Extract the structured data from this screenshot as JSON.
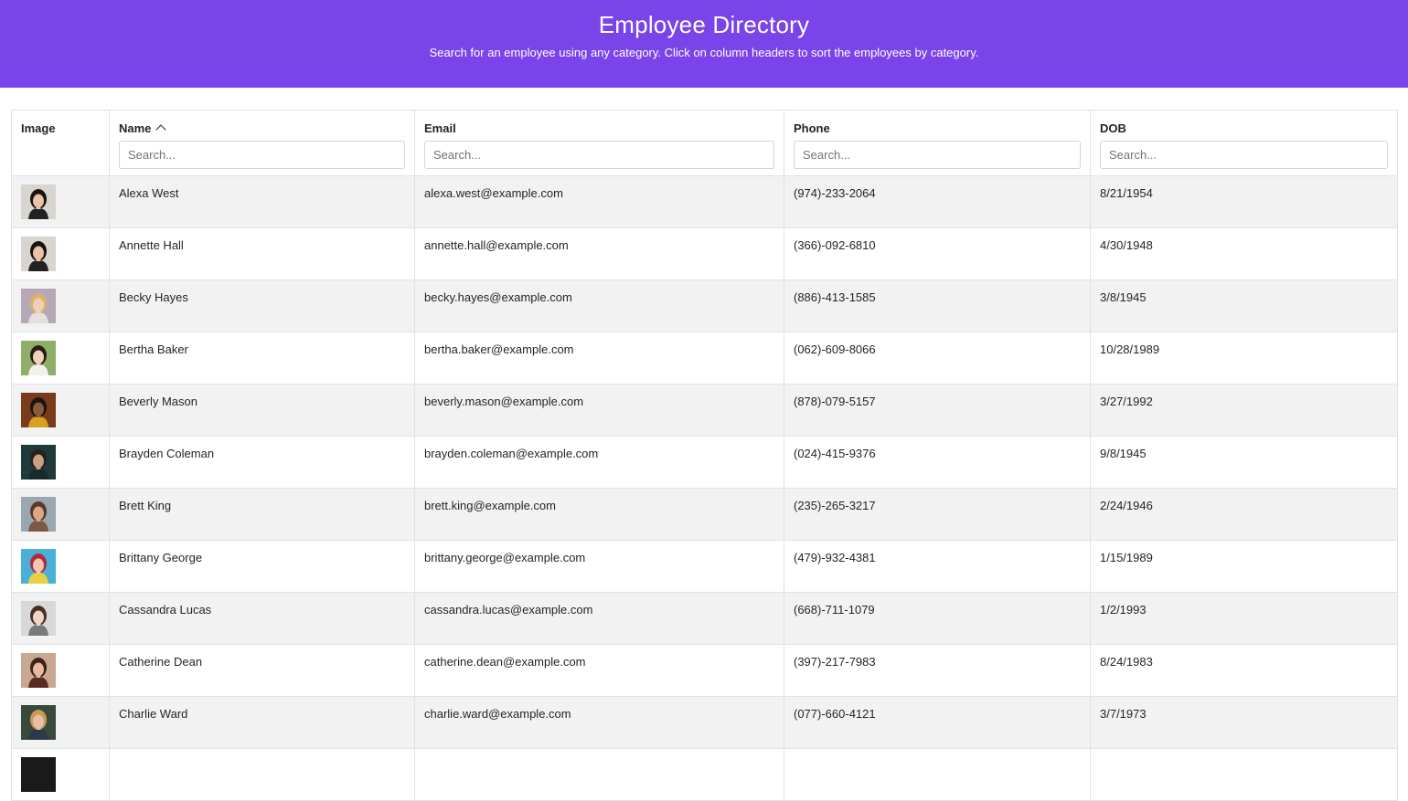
{
  "header": {
    "title": "Employee Directory",
    "subtitle": "Search for an employee using any category. Click on column headers to sort the employees by category."
  },
  "columns": [
    {
      "key": "image",
      "label": "Image"
    },
    {
      "key": "name",
      "label": "Name",
      "sort": "ascending",
      "placeholder": "Search..."
    },
    {
      "key": "email",
      "label": "Email",
      "placeholder": "Search..."
    },
    {
      "key": "phone",
      "label": "Phone",
      "placeholder": "Search..."
    },
    {
      "key": "dob",
      "label": "DOB",
      "placeholder": "Search..."
    }
  ],
  "employees": [
    {
      "name": "Alexa West",
      "email": "alexa.west@example.com",
      "phone": "(974)-233-2064",
      "dob": "8/21/1954",
      "avatar": {
        "bg": "#d8d4d0",
        "hair": "#1a1410",
        "skin": "#e8c3a8",
        "shirt": "#222222"
      }
    },
    {
      "name": "Annette Hall",
      "email": "annette.hall@example.com",
      "phone": "(366)-092-6810",
      "dob": "4/30/1948",
      "avatar": {
        "bg": "#d8d4d0",
        "hair": "#1a1410",
        "skin": "#e8c3a8",
        "shirt": "#222222"
      }
    },
    {
      "name": "Becky Hayes",
      "email": "becky.hayes@example.com",
      "phone": "(886)-413-1585",
      "dob": "3/8/1945",
      "avatar": {
        "bg": "#b7a8b8",
        "hair": "#d9b36a",
        "skin": "#f0cfb4",
        "shirt": "#e6e0da"
      }
    },
    {
      "name": "Bertha Baker",
      "email": "bertha.baker@example.com",
      "phone": "(062)-609-8066",
      "dob": "10/28/1989",
      "avatar": {
        "bg": "#8fae6a",
        "hair": "#2a1c14",
        "skin": "#f2d2bc",
        "shirt": "#f4f0ec"
      }
    },
    {
      "name": "Beverly Mason",
      "email": "beverly.mason@example.com",
      "phone": "(878)-079-5157",
      "dob": "3/27/1992",
      "avatar": {
        "bg": "#7a3b1c",
        "hair": "#1b1410",
        "skin": "#8a5a3c",
        "shirt": "#d9a020"
      }
    },
    {
      "name": "Brayden Coleman",
      "email": "brayden.coleman@example.com",
      "phone": "(024)-415-9376",
      "dob": "9/8/1945",
      "avatar": {
        "bg": "#1f3a3a",
        "hair": "#2a2018",
        "skin": "#c8a088",
        "shirt": "#1a2a2a"
      }
    },
    {
      "name": "Brett King",
      "email": "brett.king@example.com",
      "phone": "(235)-265-3217",
      "dob": "2/24/1946",
      "avatar": {
        "bg": "#9aa6b0",
        "hair": "#5a3a24",
        "skin": "#d8a888",
        "shirt": "#7a5a44"
      }
    },
    {
      "name": "Brittany George",
      "email": "brittany.george@example.com",
      "phone": "(479)-932-4381",
      "dob": "1/15/1989",
      "avatar": {
        "bg": "#4ab0d8",
        "hair": "#b02a3a",
        "skin": "#f0c8b0",
        "shirt": "#e8d040"
      }
    },
    {
      "name": "Cassandra Lucas",
      "email": "cassandra.lucas@example.com",
      "phone": "(668)-711-1079",
      "dob": "1/2/1993",
      "avatar": {
        "bg": "#d8d8d8",
        "hair": "#4a3024",
        "skin": "#f0d4c4",
        "shirt": "#7a7a7a"
      }
    },
    {
      "name": "Catherine Dean",
      "email": "catherine.dean@example.com",
      "phone": "(397)-217-7983",
      "dob": "8/24/1983",
      "avatar": {
        "bg": "#c8a890",
        "hair": "#3a2418",
        "skin": "#e8b8a0",
        "shirt": "#5a2a24"
      }
    },
    {
      "name": "Charlie Ward",
      "email": "charlie.ward@example.com",
      "phone": "(077)-660-4121",
      "dob": "3/7/1973",
      "avatar": {
        "bg": "#3a4a3a",
        "hair": "#c89a5a",
        "skin": "#e8c0a0",
        "shirt": "#2a3a4a"
      }
    },
    {
      "name": "",
      "email": "",
      "phone": "",
      "dob": "",
      "avatar": {
        "bg": "#1a1a1a",
        "hair": "#1a1a1a",
        "skin": "#1a1a1a",
        "shirt": "#1a1a1a"
      }
    }
  ]
}
